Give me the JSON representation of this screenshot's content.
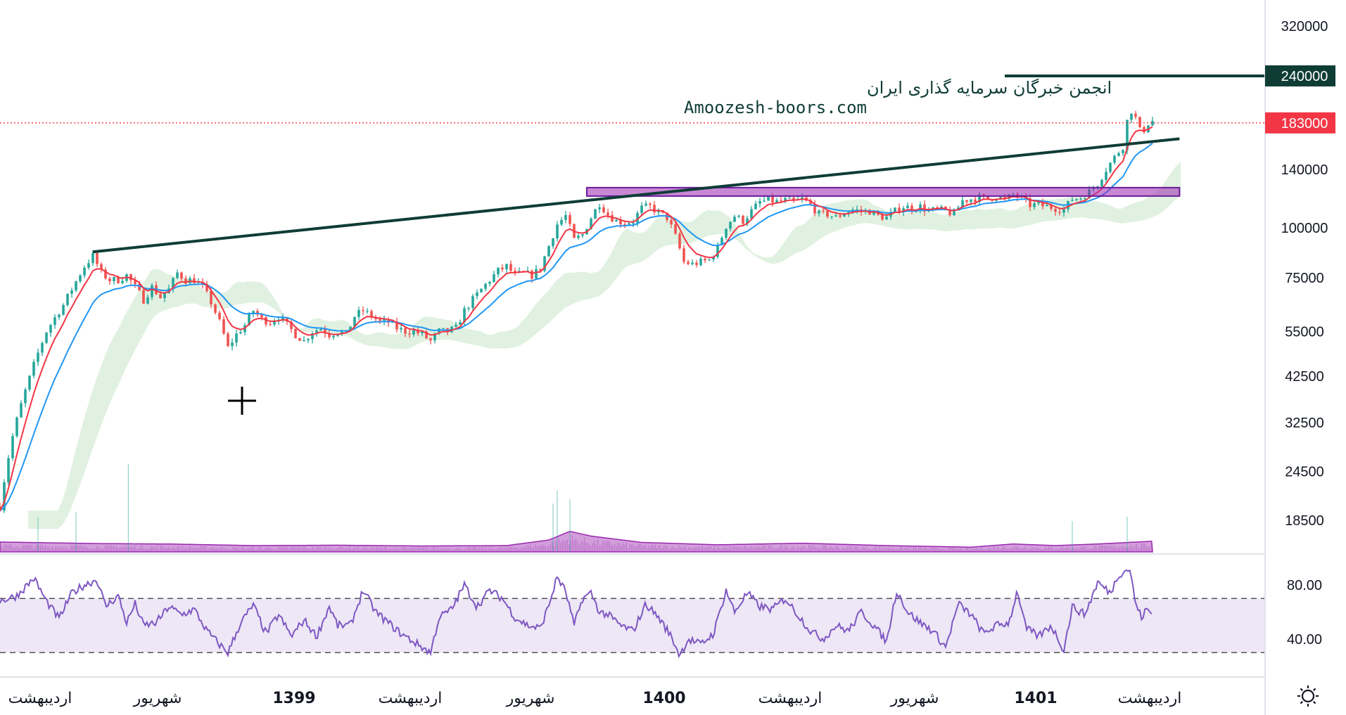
{
  "chart_data": [
    {
      "type": "candlestick",
      "scale": "log",
      "price_axis": {
        "ticks": [
          320000,
          240000,
          183000,
          140000,
          100000,
          75000,
          55000,
          42500,
          32500,
          24500,
          18500
        ],
        "highlight_level": {
          "value": 240000,
          "label": "240000",
          "color": "#0f3d36"
        },
        "last_price": {
          "value": 183000,
          "label": "183000",
          "color": "#f23645"
        }
      },
      "time_axis": {
        "labels": [
          {
            "text": "اردیبهشت",
            "bold": false
          },
          {
            "text": "شهریور",
            "bold": false
          },
          {
            "text": "1399",
            "bold": true
          },
          {
            "text": "اردیبهشت",
            "bold": false
          },
          {
            "text": "شهریور",
            "bold": false
          },
          {
            "text": "1400",
            "bold": true
          },
          {
            "text": "اردیبهشت",
            "bold": false
          },
          {
            "text": "شهریور",
            "bold": false
          },
          {
            "text": "1401",
            "bold": true
          },
          {
            "text": "اردیبهشت",
            "bold": false
          }
        ]
      },
      "price_path": [
        [
          0,
          20000
        ],
        [
          15,
          30000
        ],
        [
          35,
          42000
        ],
        [
          55,
          55000
        ],
        [
          75,
          64000
        ],
        [
          88,
          72000
        ],
        [
          100,
          80000
        ],
        [
          110,
          85000
        ],
        [
          120,
          77000
        ],
        [
          130,
          74000
        ],
        [
          140,
          74000
        ],
        [
          150,
          76000
        ],
        [
          160,
          71000
        ],
        [
          170,
          66000
        ],
        [
          180,
          71000
        ],
        [
          190,
          67000
        ],
        [
          200,
          70000
        ],
        [
          210,
          77000
        ],
        [
          220,
          74000
        ],
        [
          230,
          74000
        ],
        [
          240,
          71000
        ],
        [
          250,
          65000
        ],
        [
          260,
          58000
        ],
        [
          270,
          50000
        ],
        [
          280,
          54000
        ],
        [
          290,
          57000
        ],
        [
          300,
          62000
        ],
        [
          310,
          59000
        ],
        [
          320,
          58000
        ],
        [
          330,
          60000
        ],
        [
          340,
          57000
        ],
        [
          350,
          54000
        ],
        [
          360,
          52000
        ],
        [
          370,
          55000
        ],
        [
          380,
          56000
        ],
        [
          390,
          54000
        ],
        [
          400,
          55000
        ],
        [
          410,
          54000
        ],
        [
          420,
          60000
        ],
        [
          430,
          62000
        ],
        [
          440,
          60000
        ],
        [
          450,
          58000
        ],
        [
          460,
          58000
        ],
        [
          470,
          56000
        ],
        [
          480,
          55000
        ],
        [
          490,
          55000
        ],
        [
          500,
          54000
        ],
        [
          510,
          52000
        ],
        [
          520,
          55000
        ],
        [
          530,
          55000
        ],
        [
          540,
          56000
        ],
        [
          550,
          62000
        ],
        [
          560,
          66000
        ],
        [
          570,
          70000
        ],
        [
          580,
          74000
        ],
        [
          590,
          78000
        ],
        [
          600,
          80000
        ],
        [
          610,
          76000
        ],
        [
          620,
          77000
        ],
        [
          630,
          76000
        ],
        [
          640,
          79000
        ],
        [
          650,
          90000
        ],
        [
          660,
          102000
        ],
        [
          670,
          107000
        ],
        [
          680,
          93000
        ],
        [
          690,
          96000
        ],
        [
          700,
          106000
        ],
        [
          710,
          115000
        ],
        [
          720,
          108000
        ],
        [
          730,
          104000
        ],
        [
          740,
          103000
        ],
        [
          750,
          104000
        ],
        [
          760,
          112000
        ],
        [
          770,
          113000
        ],
        [
          780,
          109000
        ],
        [
          790,
          106000
        ],
        [
          800,
          95000
        ],
        [
          810,
          82000
        ],
        [
          820,
          81000
        ],
        [
          830,
          82000
        ],
        [
          840,
          83000
        ],
        [
          850,
          89000
        ],
        [
          860,
          101000
        ],
        [
          870,
          107000
        ],
        [
          880,
          104000
        ],
        [
          890,
          110000
        ],
        [
          900,
          116000
        ],
        [
          910,
          117000
        ],
        [
          920,
          116000
        ],
        [
          930,
          117000
        ],
        [
          940,
          116000
        ],
        [
          950,
          118000
        ],
        [
          960,
          114000
        ],
        [
          970,
          108000
        ],
        [
          980,
          108000
        ],
        [
          990,
          106000
        ],
        [
          1000,
          109000
        ],
        [
          1010,
          111000
        ],
        [
          1020,
          110000
        ],
        [
          1030,
          110000
        ],
        [
          1040,
          107000
        ],
        [
          1050,
          106000
        ],
        [
          1060,
          110000
        ],
        [
          1070,
          113000
        ],
        [
          1080,
          112000
        ],
        [
          1090,
          113000
        ],
        [
          1100,
          110000
        ],
        [
          1110,
          111000
        ],
        [
          1120,
          110000
        ],
        [
          1130,
          108000
        ],
        [
          1140,
          117000
        ],
        [
          1150,
          118000
        ],
        [
          1160,
          119000
        ],
        [
          1170,
          118000
        ],
        [
          1180,
          120000
        ],
        [
          1190,
          117000
        ],
        [
          1200,
          121000
        ],
        [
          1210,
          118000
        ],
        [
          1220,
          114000
        ],
        [
          1230,
          114000
        ],
        [
          1240,
          113000
        ],
        [
          1250,
          112000
        ],
        [
          1260,
          111000
        ],
        [
          1270,
          118000
        ],
        [
          1280,
          119000
        ],
        [
          1290,
          123000
        ],
        [
          1300,
          129000
        ],
        [
          1310,
          140000
        ],
        [
          1320,
          150000
        ],
        [
          1330,
          160000
        ],
        [
          1338,
          200000
        ],
        [
          1345,
          188000
        ],
        [
          1352,
          170000
        ],
        [
          1358,
          182000
        ],
        [
          1365,
          185000
        ]
      ],
      "volume_path": [
        [
          0,
          0.25
        ],
        [
          60,
          0.23
        ],
        [
          120,
          0.21
        ],
        [
          200,
          0.2
        ],
        [
          300,
          0.16
        ],
        [
          400,
          0.17
        ],
        [
          500,
          0.15
        ],
        [
          600,
          0.16
        ],
        [
          650,
          0.3
        ],
        [
          675,
          0.52
        ],
        [
          700,
          0.4
        ],
        [
          760,
          0.24
        ],
        [
          850,
          0.18
        ],
        [
          950,
          0.22
        ],
        [
          1050,
          0.16
        ],
        [
          1150,
          0.12
        ],
        [
          1200,
          0.2
        ],
        [
          1250,
          0.16
        ],
        [
          1300,
          0.2
        ],
        [
          1365,
          0.27
        ]
      ],
      "volume_spikes": [
        [
          152,
          1.0
        ],
        [
          660,
          0.7
        ],
        [
          655,
          0.55
        ],
        [
          675,
          0.6
        ],
        [
          90,
          0.45
        ],
        [
          45,
          0.4
        ],
        [
          1335,
          0.4
        ],
        [
          1270,
          0.35
        ]
      ]
    },
    {
      "type": "line",
      "indicator": "RSI",
      "y_ticks": [
        80.0,
        40.0
      ],
      "y_tick_labels": [
        "80.00",
        "40.00"
      ],
      "band": [
        30,
        70
      ],
      "values_path": [
        [
          0,
          68
        ],
        [
          20,
          72
        ],
        [
          40,
          85
        ],
        [
          55,
          68
        ],
        [
          70,
          55
        ],
        [
          85,
          74
        ],
        [
          100,
          80
        ],
        [
          115,
          84
        ],
        [
          125,
          64
        ],
        [
          140,
          72
        ],
        [
          150,
          52
        ],
        [
          160,
          66
        ],
        [
          170,
          50
        ],
        [
          185,
          52
        ],
        [
          200,
          64
        ],
        [
          215,
          58
        ],
        [
          230,
          62
        ],
        [
          245,
          46
        ],
        [
          260,
          36
        ],
        [
          270,
          30
        ],
        [
          285,
          52
        ],
        [
          300,
          65
        ],
        [
          315,
          44
        ],
        [
          330,
          58
        ],
        [
          345,
          42
        ],
        [
          360,
          54
        ],
        [
          375,
          42
        ],
        [
          390,
          64
        ],
        [
          400,
          50
        ],
        [
          415,
          50
        ],
        [
          430,
          76
        ],
        [
          445,
          60
        ],
        [
          460,
          52
        ],
        [
          475,
          44
        ],
        [
          490,
          38
        ],
        [
          500,
          34
        ],
        [
          510,
          30
        ],
        [
          520,
          56
        ],
        [
          535,
          62
        ],
        [
          550,
          80
        ],
        [
          565,
          64
        ],
        [
          580,
          76
        ],
        [
          595,
          70
        ],
        [
          610,
          56
        ],
        [
          625,
          50
        ],
        [
          640,
          48
        ],
        [
          650,
          65
        ],
        [
          660,
          86
        ],
        [
          670,
          75
        ],
        [
          680,
          50
        ],
        [
          690,
          70
        ],
        [
          700,
          74
        ],
        [
          710,
          60
        ],
        [
          720,
          58
        ],
        [
          735,
          50
        ],
        [
          750,
          46
        ],
        [
          765,
          66
        ],
        [
          780,
          56
        ],
        [
          795,
          42
        ],
        [
          805,
          28
        ],
        [
          815,
          40
        ],
        [
          830,
          36
        ],
        [
          845,
          44
        ],
        [
          860,
          76
        ],
        [
          870,
          60
        ],
        [
          885,
          74
        ],
        [
          900,
          64
        ],
        [
          915,
          62
        ],
        [
          930,
          70
        ],
        [
          945,
          58
        ],
        [
          960,
          46
        ],
        [
          975,
          40
        ],
        [
          990,
          50
        ],
        [
          1005,
          46
        ],
        [
          1020,
          60
        ],
        [
          1035,
          50
        ],
        [
          1050,
          38
        ],
        [
          1062,
          76
        ],
        [
          1075,
          60
        ],
        [
          1090,
          52
        ],
        [
          1105,
          46
        ],
        [
          1120,
          34
        ],
        [
          1135,
          66
        ],
        [
          1150,
          58
        ],
        [
          1165,
          44
        ],
        [
          1180,
          50
        ],
        [
          1195,
          52
        ],
        [
          1205,
          76
        ],
        [
          1215,
          48
        ],
        [
          1230,
          42
        ],
        [
          1245,
          50
        ],
        [
          1260,
          32
        ],
        [
          1270,
          64
        ],
        [
          1285,
          58
        ],
        [
          1300,
          82
        ],
        [
          1315,
          74
        ],
        [
          1325,
          88
        ],
        [
          1338,
          92
        ],
        [
          1345,
          66
        ],
        [
          1352,
          56
        ],
        [
          1358,
          62
        ],
        [
          1365,
          58
        ]
      ]
    }
  ],
  "drawings": {
    "trendline": {
      "from": [
        110,
        87000
      ],
      "to": [
        1397,
        167000
      ],
      "color": "#0f3d36"
    },
    "horizontal_ray": {
      "from_x": 1190,
      "price": 240000,
      "color": "#0f3d36"
    },
    "zone": {
      "from_x": 695,
      "to_x": 1397,
      "price_low": 120000,
      "price_high": 126000,
      "color": "#9c27b0"
    }
  },
  "watermark": {
    "line1": "انجمن خبرگان سرمایه گذاری ایران",
    "line2": "Amoozesh-boors.com"
  },
  "colors": {
    "up": "#26a69a",
    "down": "#ef5350",
    "ma_fast": "#f23645",
    "ma_slow": "#2196f3",
    "cloud_up": "#c8e6c9",
    "cloud_down": "#ffcdd2",
    "volume": "#9c27b0",
    "rsi_line": "#7e57c2",
    "rsi_band": "#ede7f6"
  }
}
